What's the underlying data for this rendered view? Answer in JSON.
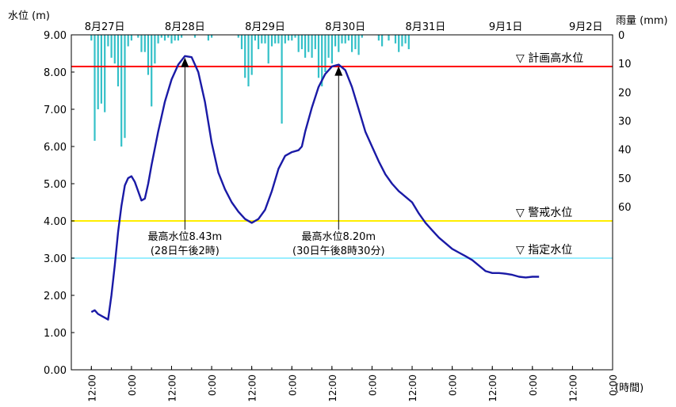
{
  "chart_data": {
    "type": "line",
    "y_axis_left": {
      "label": "水位 (m)",
      "ticks": [
        "9.00",
        "8.00",
        "7.00",
        "6.00",
        "5.00",
        "4.00",
        "3.00",
        "2.00",
        "1.00",
        "0.00"
      ],
      "range": [
        0,
        9
      ]
    },
    "y_axis_right": {
      "label": "雨量 (mm)",
      "ticks": [
        "0",
        "10",
        "20",
        "30",
        "40",
        "50",
        "60"
      ],
      "range": [
        0,
        80
      ],
      "inverted": true
    },
    "x_axis": {
      "unit": "(時間)",
      "hours_range": [
        0,
        156
      ],
      "tick_labels": [
        "12:00",
        "0:00",
        "12:00",
        "0:00",
        "12:00",
        "0:00",
        "12:00",
        "0:00",
        "12:00",
        "0:00",
        "12:00",
        "0:00",
        "12:00",
        "0:00"
      ],
      "tick_hours": [
        0,
        12,
        24,
        36,
        48,
        60,
        72,
        84,
        96,
        108,
        120,
        132,
        144,
        156
      ],
      "date_labels": [
        {
          "text": "8月27日",
          "hour": 4
        },
        {
          "text": "8月28日",
          "hour": 28
        },
        {
          "text": "8月29日",
          "hour": 52
        },
        {
          "text": "8月30日",
          "hour": 76
        },
        {
          "text": "8月31日",
          "hour": 100
        },
        {
          "text": "9月1日",
          "hour": 124
        },
        {
          "text": "9月2日",
          "hour": 148
        }
      ],
      "first_tick_offset_hours": 6
    },
    "reference_lines": [
      {
        "name": "計画高水位",
        "value": 8.15,
        "color": "#ff0000"
      },
      {
        "name": "警戒水位",
        "value": 4.0,
        "color": "#ffee00"
      },
      {
        "name": "指定水位",
        "value": 3.0,
        "color": "#99eeff"
      }
    ],
    "series": [
      {
        "color": "#1a1aa6",
        "points": [
          [
            0,
            1.55
          ],
          [
            1,
            1.6
          ],
          [
            2,
            1.5
          ],
          [
            4,
            1.4
          ],
          [
            5,
            1.35
          ],
          [
            6,
            2.0
          ],
          [
            7,
            2.8
          ],
          [
            8,
            3.7
          ],
          [
            9,
            4.4
          ],
          [
            10,
            4.95
          ],
          [
            11,
            5.15
          ],
          [
            12,
            5.2
          ],
          [
            13,
            5.05
          ],
          [
            14,
            4.8
          ],
          [
            15,
            4.55
          ],
          [
            16,
            4.6
          ],
          [
            17,
            5.0
          ],
          [
            18,
            5.5
          ],
          [
            20,
            6.4
          ],
          [
            22,
            7.2
          ],
          [
            24,
            7.8
          ],
          [
            26,
            8.2
          ],
          [
            28,
            8.43
          ],
          [
            30,
            8.4
          ],
          [
            32,
            8.0
          ],
          [
            34,
            7.2
          ],
          [
            36,
            6.1
          ],
          [
            38,
            5.3
          ],
          [
            40,
            4.85
          ],
          [
            42,
            4.5
          ],
          [
            44,
            4.25
          ],
          [
            46,
            4.05
          ],
          [
            48,
            3.95
          ],
          [
            50,
            4.05
          ],
          [
            52,
            4.3
          ],
          [
            54,
            4.8
          ],
          [
            56,
            5.4
          ],
          [
            58,
            5.75
          ],
          [
            60,
            5.85
          ],
          [
            62,
            5.9
          ],
          [
            63,
            6.0
          ],
          [
            64,
            6.4
          ],
          [
            66,
            7.05
          ],
          [
            68,
            7.6
          ],
          [
            70,
            7.95
          ],
          [
            72,
            8.15
          ],
          [
            74,
            8.2
          ],
          [
            76,
            8.05
          ],
          [
            78,
            7.6
          ],
          [
            80,
            7.0
          ],
          [
            82,
            6.4
          ],
          [
            84,
            6.0
          ],
          [
            86,
            5.6
          ],
          [
            88,
            5.25
          ],
          [
            90,
            5.0
          ],
          [
            92,
            4.8
          ],
          [
            94,
            4.65
          ],
          [
            96,
            4.5
          ],
          [
            98,
            4.2
          ],
          [
            100,
            3.95
          ],
          [
            102,
            3.75
          ],
          [
            104,
            3.55
          ],
          [
            106,
            3.4
          ],
          [
            108,
            3.25
          ],
          [
            110,
            3.15
          ],
          [
            112,
            3.05
          ],
          [
            114,
            2.95
          ],
          [
            116,
            2.8
          ],
          [
            118,
            2.65
          ],
          [
            120,
            2.6
          ],
          [
            122,
            2.6
          ],
          [
            124,
            2.58
          ],
          [
            126,
            2.55
          ],
          [
            128,
            2.5
          ],
          [
            130,
            2.48
          ],
          [
            132,
            2.5
          ],
          [
            134,
            2.5
          ]
        ]
      }
    ],
    "rainfall_hourly": [
      [
        0,
        2
      ],
      [
        1,
        37
      ],
      [
        2,
        26
      ],
      [
        3,
        24
      ],
      [
        4,
        27
      ],
      [
        5,
        4
      ],
      [
        6,
        8
      ],
      [
        7,
        10
      ],
      [
        8,
        18
      ],
      [
        9,
        39
      ],
      [
        10,
        36
      ],
      [
        11,
        4
      ],
      [
        12,
        2
      ],
      [
        14,
        1
      ],
      [
        15,
        6
      ],
      [
        16,
        6
      ],
      [
        17,
        14
      ],
      [
        18,
        25
      ],
      [
        19,
        10
      ],
      [
        20,
        3
      ],
      [
        21,
        1
      ],
      [
        22,
        2
      ],
      [
        23,
        1
      ],
      [
        24,
        3
      ],
      [
        25,
        2
      ],
      [
        26,
        2
      ],
      [
        27,
        1
      ],
      [
        31,
        1
      ],
      [
        35,
        2
      ],
      [
        36,
        1
      ],
      [
        44,
        1
      ],
      [
        45,
        5
      ],
      [
        46,
        15
      ],
      [
        47,
        18
      ],
      [
        48,
        14
      ],
      [
        49,
        2
      ],
      [
        50,
        5
      ],
      [
        51,
        3
      ],
      [
        52,
        3
      ],
      [
        53,
        10
      ],
      [
        54,
        4
      ],
      [
        55,
        3
      ],
      [
        56,
        3
      ],
      [
        57,
        31
      ],
      [
        58,
        3
      ],
      [
        59,
        2
      ],
      [
        60,
        2
      ],
      [
        61,
        1
      ],
      [
        62,
        6
      ],
      [
        63,
        5
      ],
      [
        64,
        8
      ],
      [
        65,
        6
      ],
      [
        66,
        8
      ],
      [
        67,
        5
      ],
      [
        68,
        15
      ],
      [
        69,
        18
      ],
      [
        70,
        13
      ],
      [
        71,
        8
      ],
      [
        72,
        10
      ],
      [
        73,
        4
      ],
      [
        74,
        6
      ],
      [
        75,
        3
      ],
      [
        76,
        3
      ],
      [
        77,
        2
      ],
      [
        78,
        6
      ],
      [
        79,
        5
      ],
      [
        80,
        7
      ],
      [
        81,
        1
      ],
      [
        86,
        2
      ],
      [
        87,
        4
      ],
      [
        89,
        2
      ],
      [
        91,
        3
      ],
      [
        92,
        6
      ],
      [
        93,
        4
      ],
      [
        94,
        3
      ],
      [
        95,
        5
      ]
    ],
    "annotations": [
      {
        "line1": "最高水位8.43m",
        "line2": "(28日午後2時)",
        "peak_hour": 28,
        "peak_value": 8.43
      },
      {
        "line1": "最高水位8.20m",
        "line2": "(30日午後8時30分)",
        "peak_hour": 74,
        "peak_value": 8.2
      }
    ],
    "grid": false
  }
}
